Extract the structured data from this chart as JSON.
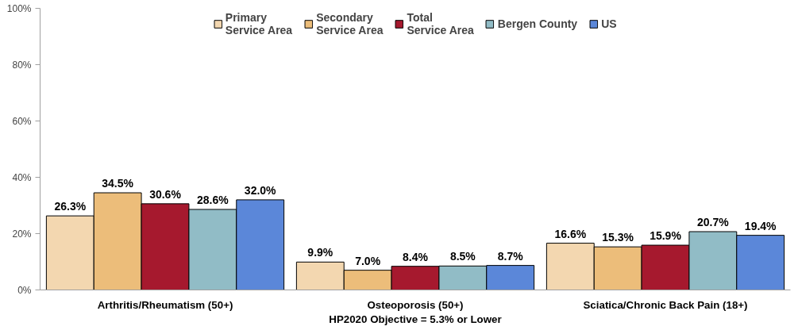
{
  "chart_data": {
    "type": "bar",
    "categories": [
      "Arthritis/Rheumatism (50+)",
      "Osteoporosis (50+)\nHP2020 Objective = 5.3% or Lower",
      "Sciatica/Chronic Back Pain (18+)"
    ],
    "series": [
      {
        "name": "Primary\nService Area",
        "color": "#f3d7b0",
        "values": [
          26.3,
          9.9,
          16.6
        ],
        "value_labels": [
          "26.3%",
          "9.9%",
          "16.6%"
        ]
      },
      {
        "name": "Secondary\nService Area",
        "color": "#ecbd7a",
        "values": [
          34.5,
          7.0,
          15.3
        ],
        "value_labels": [
          "34.5%",
          "7.0%",
          "15.3%"
        ]
      },
      {
        "name": "Total\nService Area",
        "color": "#a6192e",
        "values": [
          30.6,
          8.4,
          15.9
        ],
        "value_labels": [
          "30.6%",
          "8.4%",
          "15.9%"
        ]
      },
      {
        "name": "Bergen County",
        "color": "#91bcc6",
        "values": [
          28.6,
          8.5,
          20.7
        ],
        "value_labels": [
          "28.6%",
          "8.5%",
          "20.7%"
        ]
      },
      {
        "name": "US",
        "color": "#5b87d9",
        "values": [
          32.0,
          8.7,
          19.4
        ],
        "value_labels": [
          "32.0%",
          "8.7%",
          "19.4%"
        ]
      }
    ],
    "ylim": [
      0,
      100
    ],
    "yticks": [
      {
        "value": 0,
        "label": "0%"
      },
      {
        "value": 20,
        "label": "20%"
      },
      {
        "value": 40,
        "label": "40%"
      },
      {
        "value": 60,
        "label": "60%"
      },
      {
        "value": 80,
        "label": "80%"
      },
      {
        "value": 100,
        "label": "100%"
      }
    ],
    "grid": false,
    "legend": "top"
  }
}
